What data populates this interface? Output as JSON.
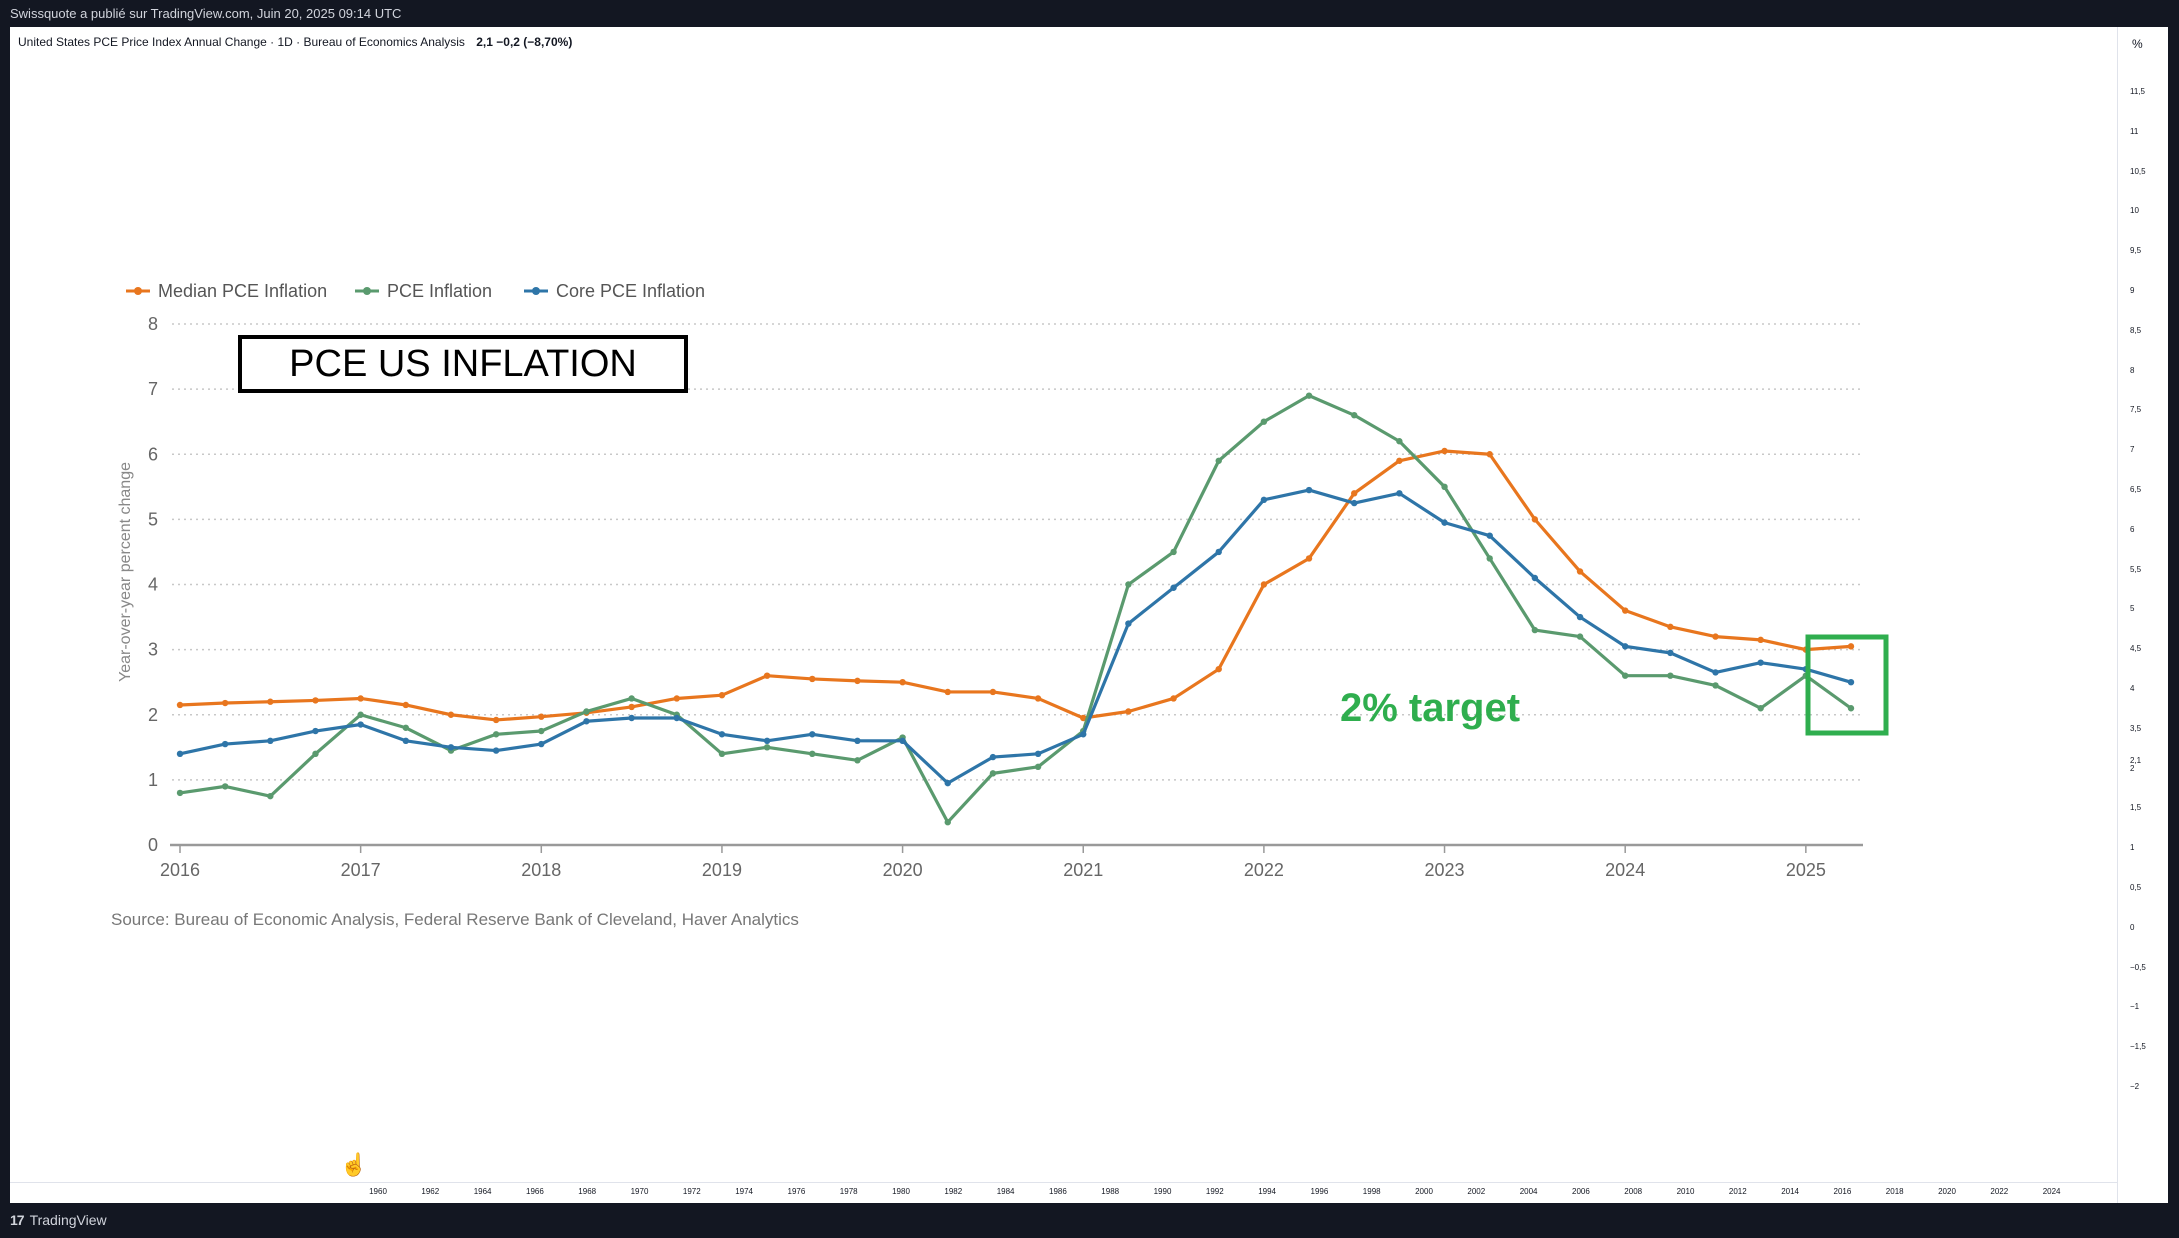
{
  "header": {
    "published": "Swissquote a publié sur TradingView.com, Juin 20, 2025 09:14 UTC"
  },
  "symbol": {
    "description": "United States PCE Price Index Annual Change · 1D · Bureau of Economics Analysis",
    "value": "2,1 −0,2 (−8,70%)"
  },
  "footer": {
    "brand": "TradingView",
    "logo": "tradingview-logo-icon"
  },
  "overlay": {
    "title": "PCE US INFLATION",
    "target_label": "2% target",
    "target_color": "#2fae4e"
  },
  "price_scale": {
    "unit": "%",
    "labels": [
      "11,5",
      "11",
      "10,5",
      "10",
      "9,5",
      "9",
      "8,5",
      "8",
      "7,5",
      "7",
      "6,5",
      "6",
      "5,5",
      "5",
      "4,5",
      "4",
      "3,5",
      "2,1",
      "2",
      "1,5",
      "1",
      "0,5",
      "0",
      "−0,5",
      "−1",
      "−1,5",
      "−2"
    ]
  },
  "time_scale": {
    "labels": [
      "1960",
      "1962",
      "1964",
      "1966",
      "1968",
      "1970",
      "1972",
      "1974",
      "1976",
      "1978",
      "1980",
      "1982",
      "1984",
      "1986",
      "1988",
      "1990",
      "1992",
      "1994",
      "1996",
      "1998",
      "2000",
      "2002",
      "2004",
      "2006",
      "2008",
      "2010",
      "2012",
      "2014",
      "2016",
      "2018",
      "2020",
      "2022",
      "2024"
    ]
  },
  "chart_data": {
    "type": "line",
    "title": "PCE US INFLATION",
    "source": "Source: Bureau of Economic Analysis, Federal Reserve Bank of Cleveland, Haver Analytics",
    "ylabel": "Year-over-year percent change",
    "xlabel": "",
    "ylim": [
      0,
      8
    ],
    "xlim": [
      2016.0,
      2025.25
    ],
    "yticks": [
      "0",
      "1",
      "2",
      "3",
      "4",
      "5",
      "6",
      "7",
      "8"
    ],
    "xticks": [
      "2016",
      "2017",
      "2018",
      "2019",
      "2020",
      "2021",
      "2022",
      "2023",
      "2024",
      "2025"
    ],
    "grid": true,
    "legend_position": "top-left",
    "series": [
      {
        "name": "Median PCE Inflation",
        "color": "#e8761e",
        "points": [
          [
            2016.0,
            2.15
          ],
          [
            2016.25,
            2.18
          ],
          [
            2016.5,
            2.2
          ],
          [
            2016.75,
            2.22
          ],
          [
            2017.0,
            2.25
          ],
          [
            2017.25,
            2.15
          ],
          [
            2017.5,
            2.0
          ],
          [
            2017.75,
            1.92
          ],
          [
            2018.0,
            1.97
          ],
          [
            2018.25,
            2.03
          ],
          [
            2018.5,
            2.12
          ],
          [
            2018.75,
            2.25
          ],
          [
            2019.0,
            2.3
          ],
          [
            2019.25,
            2.6
          ],
          [
            2019.5,
            2.55
          ],
          [
            2019.75,
            2.52
          ],
          [
            2020.0,
            2.5
          ],
          [
            2020.25,
            2.35
          ],
          [
            2020.5,
            2.35
          ],
          [
            2020.75,
            2.25
          ],
          [
            2021.0,
            1.95
          ],
          [
            2021.25,
            2.05
          ],
          [
            2021.5,
            2.25
          ],
          [
            2021.75,
            2.7
          ],
          [
            2022.0,
            4.0
          ],
          [
            2022.25,
            4.4
          ],
          [
            2022.5,
            5.4
          ],
          [
            2022.75,
            5.9
          ],
          [
            2023.0,
            6.05
          ],
          [
            2023.25,
            6.0
          ],
          [
            2023.5,
            5.0
          ],
          [
            2023.75,
            4.2
          ],
          [
            2024.0,
            3.6
          ],
          [
            2024.25,
            3.35
          ],
          [
            2024.5,
            3.2
          ],
          [
            2024.75,
            3.15
          ],
          [
            2025.0,
            3.0
          ],
          [
            2025.25,
            3.05
          ]
        ]
      },
      {
        "name": "PCE Inflation",
        "color": "#5a9a6e",
        "points": [
          [
            2016.0,
            0.8
          ],
          [
            2016.25,
            0.9
          ],
          [
            2016.5,
            0.75
          ],
          [
            2016.75,
            1.4
          ],
          [
            2017.0,
            2.0
          ],
          [
            2017.25,
            1.8
          ],
          [
            2017.5,
            1.45
          ],
          [
            2017.75,
            1.7
          ],
          [
            2018.0,
            1.75
          ],
          [
            2018.25,
            2.05
          ],
          [
            2018.5,
            2.25
          ],
          [
            2018.75,
            2.0
          ],
          [
            2019.0,
            1.4
          ],
          [
            2019.25,
            1.5
          ],
          [
            2019.5,
            1.4
          ],
          [
            2019.75,
            1.3
          ],
          [
            2020.0,
            1.65
          ],
          [
            2020.25,
            0.35
          ],
          [
            2020.5,
            1.1
          ],
          [
            2020.75,
            1.2
          ],
          [
            2021.0,
            1.75
          ],
          [
            2021.25,
            4.0
          ],
          [
            2021.5,
            4.5
          ],
          [
            2021.75,
            5.9
          ],
          [
            2022.0,
            6.5
          ],
          [
            2022.25,
            6.9
          ],
          [
            2022.5,
            6.6
          ],
          [
            2022.75,
            6.2
          ],
          [
            2023.0,
            5.5
          ],
          [
            2023.25,
            4.4
          ],
          [
            2023.5,
            3.3
          ],
          [
            2023.75,
            3.2
          ],
          [
            2024.0,
            2.6
          ],
          [
            2024.25,
            2.6
          ],
          [
            2024.5,
            2.45
          ],
          [
            2024.75,
            2.1
          ],
          [
            2025.0,
            2.6
          ],
          [
            2025.25,
            2.1
          ]
        ]
      },
      {
        "name": "Core PCE Inflation",
        "color": "#2e75a8",
        "points": [
          [
            2016.0,
            1.4
          ],
          [
            2016.25,
            1.55
          ],
          [
            2016.5,
            1.6
          ],
          [
            2016.75,
            1.75
          ],
          [
            2017.0,
            1.85
          ],
          [
            2017.25,
            1.6
          ],
          [
            2017.5,
            1.5
          ],
          [
            2017.75,
            1.45
          ],
          [
            2018.0,
            1.55
          ],
          [
            2018.25,
            1.9
          ],
          [
            2018.5,
            1.95
          ],
          [
            2018.75,
            1.95
          ],
          [
            2019.0,
            1.7
          ],
          [
            2019.25,
            1.6
          ],
          [
            2019.5,
            1.7
          ],
          [
            2019.75,
            1.6
          ],
          [
            2020.0,
            1.6
          ],
          [
            2020.25,
            0.95
          ],
          [
            2020.5,
            1.35
          ],
          [
            2020.75,
            1.4
          ],
          [
            2021.0,
            1.7
          ],
          [
            2021.25,
            3.4
          ],
          [
            2021.5,
            3.95
          ],
          [
            2021.75,
            4.5
          ],
          [
            2022.0,
            5.3
          ],
          [
            2022.25,
            5.45
          ],
          [
            2022.5,
            5.25
          ],
          [
            2022.75,
            5.4
          ],
          [
            2023.0,
            4.95
          ],
          [
            2023.25,
            4.75
          ],
          [
            2023.5,
            4.1
          ],
          [
            2023.75,
            3.5
          ],
          [
            2024.0,
            3.05
          ],
          [
            2024.25,
            2.95
          ],
          [
            2024.5,
            2.65
          ],
          [
            2024.75,
            2.8
          ],
          [
            2025.0,
            2.7
          ],
          [
            2025.25,
            2.5
          ]
        ]
      }
    ]
  }
}
